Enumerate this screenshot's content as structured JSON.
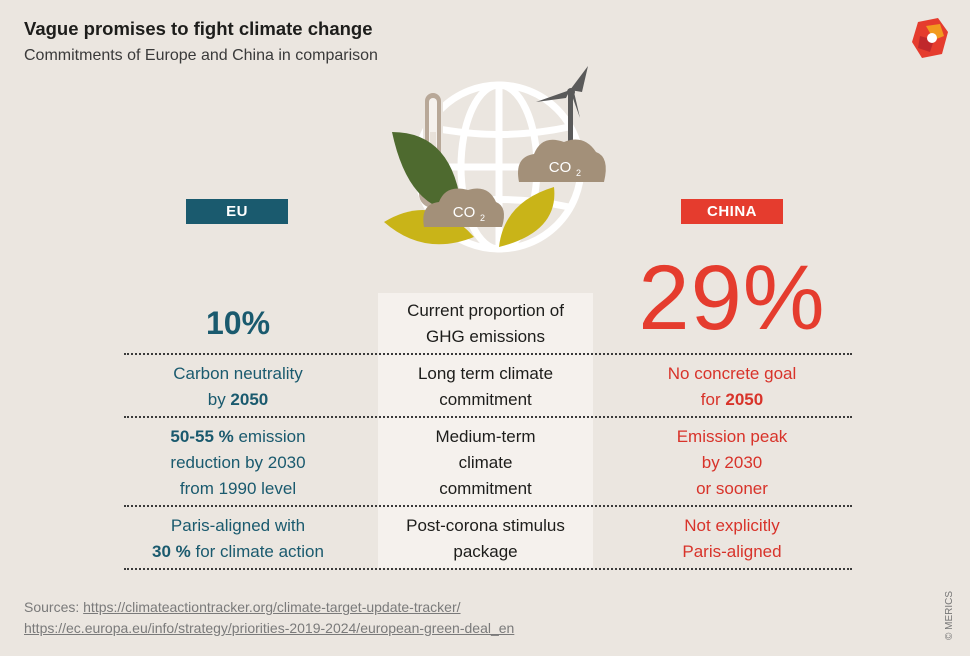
{
  "header": {
    "title": "Vague promises to fight climate change",
    "subtitle": "Commitments of Europe and China in comparison"
  },
  "icons": {
    "logo": "merics-logo-icon",
    "hero": "globe-thermometer-wind-turbine-co2-illustration",
    "co2_left": "CO",
    "co2_right": "CO",
    "co2_sub": "2"
  },
  "labels": {
    "eu": "EU",
    "china": "CHINA"
  },
  "rows": [
    {
      "eu": {
        "big": "10%"
      },
      "mid": {
        "line1": "Current proportion of",
        "line2": "GHG emissions"
      },
      "cn": {
        "big": "29%"
      }
    },
    {
      "eu": {
        "line1": "Carbon neutrality",
        "line2_pre": "by ",
        "line2_bold": "2050"
      },
      "mid": {
        "line1": "Long term climate",
        "line2": "commitment"
      },
      "cn": {
        "line1": "No concrete goal",
        "line2_pre": "for ",
        "line2_bold": "2050"
      }
    },
    {
      "eu": {
        "line1_bold": "50-55 %",
        "line1_rest": " emission",
        "line2": "reduction by 2030",
        "line3": "from 1990 level"
      },
      "mid": {
        "line1": "Medium-term",
        "line2": "climate",
        "line3": "commitment"
      },
      "cn": {
        "line1": "Emission peak",
        "line2": "by 2030",
        "line3": "or sooner"
      }
    },
    {
      "eu": {
        "line1": "Paris-aligned with",
        "line2_bold": "30 %",
        "line2_rest": " for climate action"
      },
      "mid": {
        "line1": "Post-corona stimulus",
        "line2": "package"
      },
      "cn": {
        "line1": "Not explicitly",
        "line2": "Paris-aligned"
      }
    }
  ],
  "sources": {
    "prefix": "Sources: ",
    "link1": "https://climateactiontracker.org/climate-target-update-tracker/",
    "link2": "https://ec.europa.eu/info/strategy/priorities-2019-2024/european-green-deal_en"
  },
  "copyright": "© MERICS",
  "colors": {
    "background": "#ebe6e0",
    "eu": "#1a5a6e",
    "china": "#e53c2e",
    "panel": "#f5f1ed"
  }
}
